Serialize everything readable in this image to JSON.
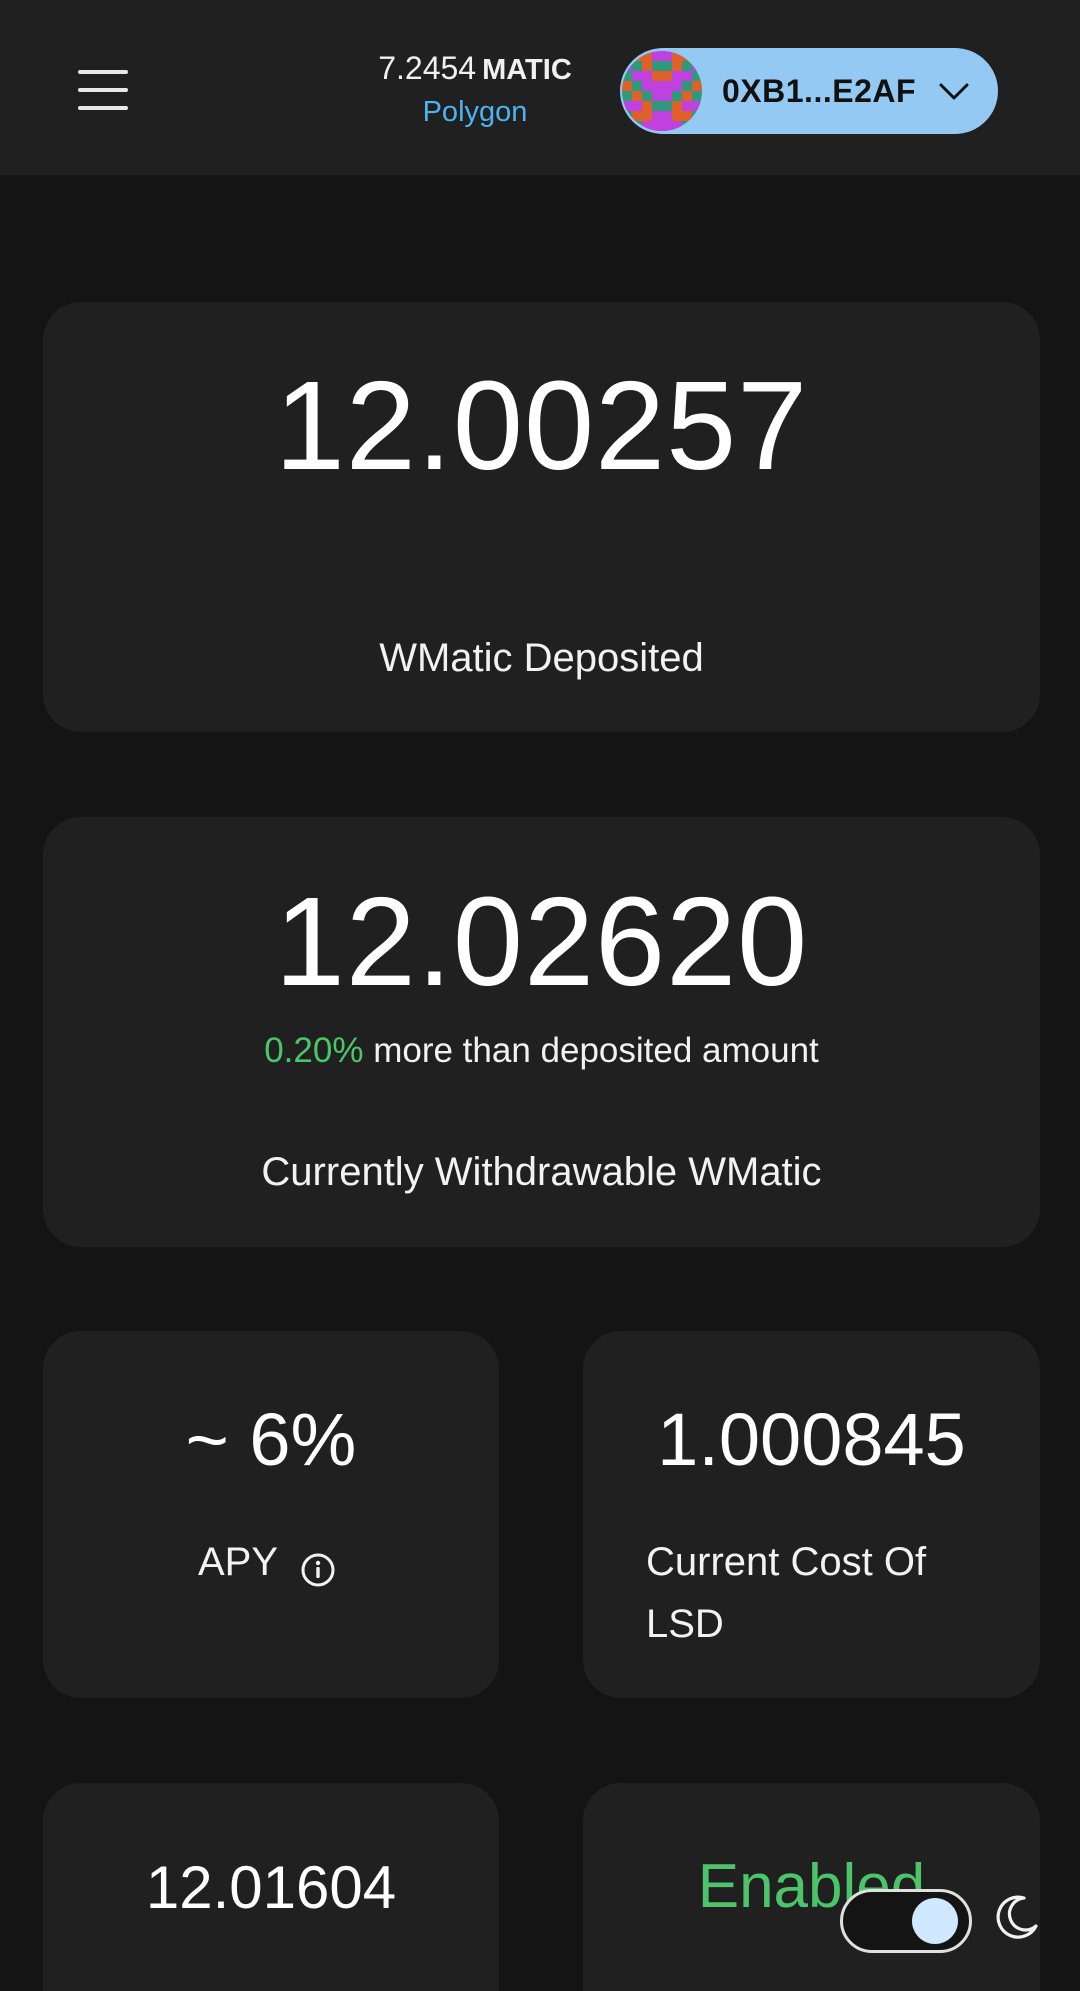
{
  "header": {
    "balance_amount": "7.2454",
    "balance_symbol": "MATIC",
    "network": "Polygon",
    "wallet_address": "0XB1...E2AF"
  },
  "cards": {
    "deposited": {
      "value": "12.00257",
      "label": "WMatic Deposited"
    },
    "withdrawable": {
      "value": "12.02620",
      "gain_percent": "0.20%",
      "gain_text": "more than deposited amount",
      "label": "Currently Withdrawable WMatic"
    },
    "apy": {
      "value": "~ 6%",
      "label": "APY"
    },
    "lsd_cost": {
      "value": "1.000845",
      "label": "Current Cost Of LSD"
    },
    "lsd_balance": {
      "value": "12.01604"
    },
    "staking": {
      "value": "Enabled"
    }
  },
  "theme_toggle": {
    "state": "dark",
    "icon": "moon-icon"
  },
  "colors": {
    "accent_blue": "#4db3f0",
    "wallet_button": "#94c9f4",
    "positive_green": "#4cc56a",
    "card_bg": "#202020",
    "page_bg": "#141414"
  }
}
